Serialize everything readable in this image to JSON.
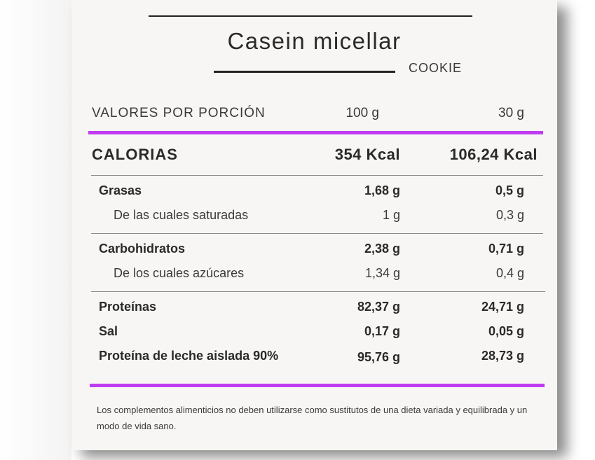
{
  "product": {
    "name": "Casein micellar",
    "flavor": "COOKIE"
  },
  "header": {
    "label": "VALORES POR PORCIÓN",
    "col1": "100 g",
    "col2": "30 g"
  },
  "calories": {
    "label": "CALORIAS",
    "col1": "354 Kcal",
    "col2": "106,24 Kcal"
  },
  "rows": [
    {
      "label": "Grasas",
      "col1": "1,68 g",
      "col2": "0,5 g"
    },
    {
      "label": "De las cuales saturadas",
      "col1": "1 g",
      "col2": "0,3 g"
    },
    {
      "label": "Carbohidratos",
      "col1": "2,38 g",
      "col2": "0,71 g"
    },
    {
      "label": "De los cuales azúcares",
      "col1": "1,34 g",
      "col2": "0,4 g"
    },
    {
      "label": "Proteínas",
      "col1": "82,37 g",
      "col2": "24,71 g"
    },
    {
      "label": "Sal",
      "col1": "0,17 g",
      "col2": "0,05 g"
    },
    {
      "label": "Proteína de leche aislada 90%",
      "col1": "95,76 g",
      "col2": "28,73 g"
    }
  ],
  "footnote": "Los complementos alimenticios no deben utilizarse como sustitutos de una dieta variada y equilibrada y un modo de vida sano.",
  "colors": {
    "accent": "#c03cf0",
    "text": "#2a2a2a"
  }
}
